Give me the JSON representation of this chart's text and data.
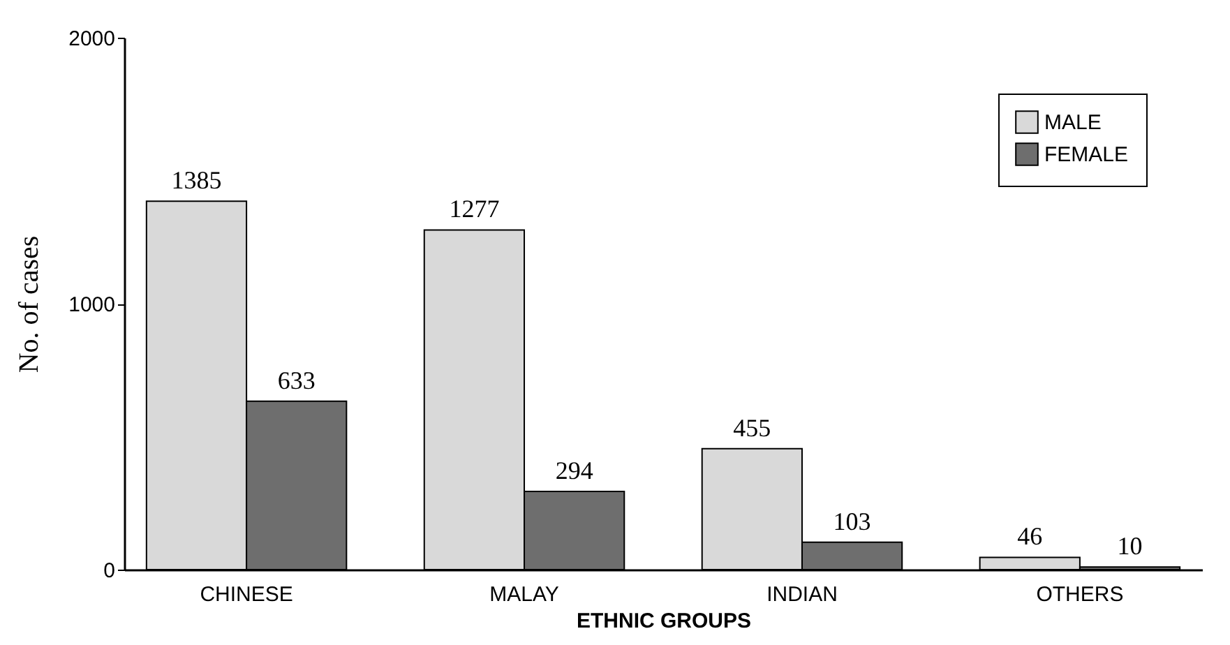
{
  "chart_data": {
    "type": "bar",
    "xlabel": "ETHNIC GROUPS",
    "ylabel": "No. of cases",
    "categories": [
      "CHINESE",
      "MALAY",
      "INDIAN",
      "OTHERS"
    ],
    "series": [
      {
        "name": "MALE",
        "color": "#d9d9d9",
        "values": [
          1385,
          1277,
          455,
          46
        ]
      },
      {
        "name": "FEMALE",
        "color": "#6e6e6e",
        "values": [
          633,
          294,
          103,
          10
        ]
      }
    ],
    "ylim": [
      0,
      2000
    ],
    "yticks": [
      0,
      1000,
      2000
    ],
    "data_labels": true,
    "legend": "top right",
    "grid": false
  }
}
